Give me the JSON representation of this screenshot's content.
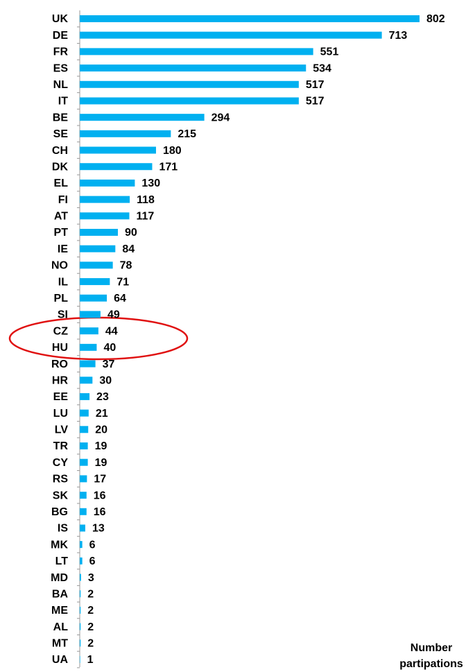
{
  "chart_data": {
    "type": "barh",
    "categories": [
      "UK",
      "DE",
      "FR",
      "ES",
      "NL",
      "IT",
      "BE",
      "SE",
      "CH",
      "DK",
      "EL",
      "FI",
      "AT",
      "PT",
      "IE",
      "NO",
      "IL",
      "PL",
      "SI",
      "CZ",
      "HU",
      "RO",
      "HR",
      "EE",
      "LU",
      "LV",
      "TR",
      "CY",
      "RS",
      "SK",
      "BG",
      "IS",
      "MK",
      "LT",
      "MD",
      "BA",
      "ME",
      "AL",
      "MT",
      "UA"
    ],
    "values": [
      802,
      713,
      551,
      534,
      517,
      517,
      294,
      215,
      180,
      171,
      130,
      118,
      117,
      90,
      84,
      78,
      71,
      64,
      49,
      44,
      40,
      37,
      30,
      23,
      21,
      20,
      19,
      19,
      17,
      16,
      16,
      13,
      6,
      6,
      3,
      2,
      2,
      2,
      2,
      1
    ],
    "color": "#00b0f0",
    "xlabel": [
      "Number",
      "partipations"
    ]
  }
}
